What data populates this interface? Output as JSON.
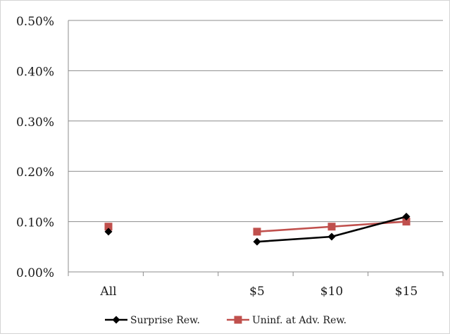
{
  "chart_data": {
    "type": "line",
    "title": "",
    "xlabel": "",
    "ylabel": "",
    "categories": [
      "All",
      "",
      "$5",
      "$10",
      "$15"
    ],
    "y_ticks": [
      "0.00%",
      "0.10%",
      "0.20%",
      "0.30%",
      "0.40%",
      "0.50%"
    ],
    "ylim": [
      0,
      0.5
    ],
    "y_unit": "%",
    "grid": "horizontal",
    "legend_position": "bottom",
    "series": [
      {
        "name": "Surprise Rew.",
        "color": "#000000",
        "marker": "diamond",
        "values": [
          0.08,
          null,
          0.06,
          0.07,
          0.11
        ]
      },
      {
        "name": "Uninf. at Adv. Rew.",
        "color": "#c0504d",
        "marker": "square",
        "values": [
          0.09,
          null,
          0.08,
          0.09,
          0.1
        ]
      }
    ]
  }
}
